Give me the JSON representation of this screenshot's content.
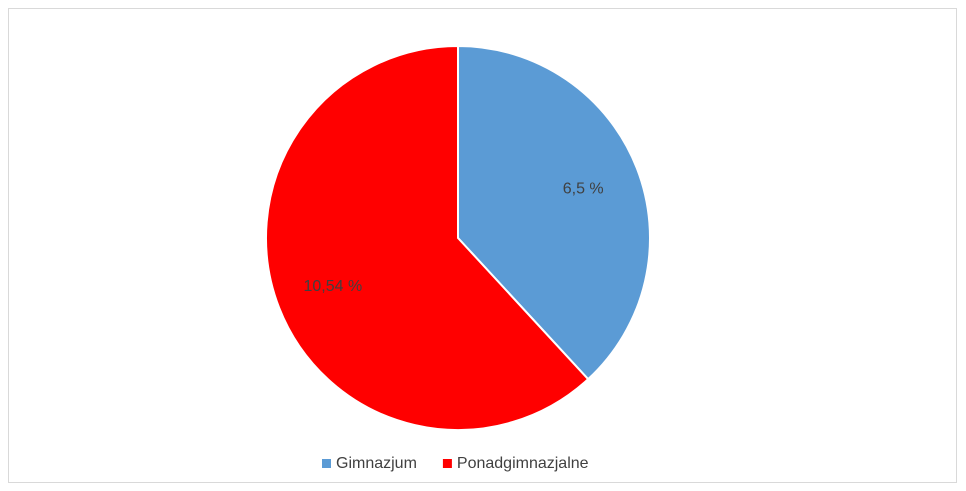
{
  "chart_data": {
    "type": "pie",
    "categories": [
      "Gimnazjum",
      "Ponadgimnazjalne"
    ],
    "values": [
      6.5,
      10.54
    ],
    "value_labels": [
      "6,5 %",
      "10,54 %"
    ],
    "colors": [
      "#5b9bd5",
      "#ff0000"
    ],
    "legend": "bottom"
  }
}
